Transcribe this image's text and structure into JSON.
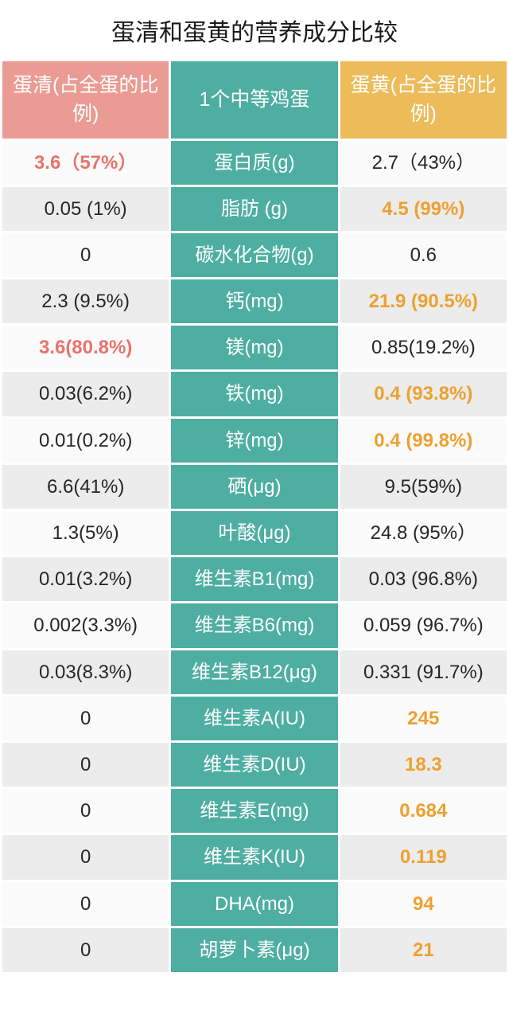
{
  "title": "蛋清和蛋黄的营养成分比较",
  "headers": {
    "white": "蛋清(占全蛋的比例)",
    "mid": "1个中等鸡蛋",
    "yolk": "蛋黄(占全蛋的比例)"
  },
  "colors": {
    "header_white": "#ea9b93",
    "header_mid": "#4eaea2",
    "header_yolk": "#ecbb5a",
    "highlight_white": "#e8746b",
    "highlight_yolk": "#eea02f",
    "row_odd": "#fbfbfb",
    "row_even": "#ececec",
    "text": "#262626"
  },
  "rows": [
    {
      "white": "3.6（57%）",
      "mid": "蛋白质(g)",
      "yolk": "2.7（43%）",
      "hl": "white"
    },
    {
      "white": "0.05 (1%)",
      "mid": "脂肪 (g)",
      "yolk": "4.5 (99%)",
      "hl": "yolk"
    },
    {
      "white": "0",
      "mid": "碳水化合物(g)",
      "yolk": "0.6",
      "hl": "none"
    },
    {
      "white": "2.3 (9.5%)",
      "mid": "钙(mg)",
      "yolk": "21.9 (90.5%)",
      "hl": "yolk"
    },
    {
      "white": "3.6(80.8%)",
      "mid": "镁(mg)",
      "yolk": "0.85(19.2%)",
      "hl": "white"
    },
    {
      "white": "0.03(6.2%)",
      "mid": "铁(mg)",
      "yolk": "0.4 (93.8%)",
      "hl": "yolk"
    },
    {
      "white": "0.01(0.2%)",
      "mid": "锌(mg)",
      "yolk": "0.4 (99.8%)",
      "hl": "yolk"
    },
    {
      "white": "6.6(41%)",
      "mid": "硒(μg)",
      "yolk": "9.5(59%)",
      "hl": "none"
    },
    {
      "white": "1.3(5%)",
      "mid": "叶酸(μg)",
      "yolk": "24.8 (95%）",
      "hl": "none"
    },
    {
      "white": "0.01(3.2%)",
      "mid": "维生素B1(mg)",
      "yolk": "0.03 (96.8%)",
      "hl": "none"
    },
    {
      "white": "0.002(3.3%)",
      "mid": "维生素B6(mg)",
      "yolk": "0.059 (96.7%)",
      "hl": "none"
    },
    {
      "white": "0.03(8.3%)",
      "mid": "维生素B12(μg)",
      "yolk": "0.331 (91.7%)",
      "hl": "none"
    },
    {
      "white": "0",
      "mid": "维生素A(IU)",
      "yolk": "245",
      "hl": "yolk"
    },
    {
      "white": "0",
      "mid": "维生素D(IU)",
      "yolk": "18.3",
      "hl": "yolk"
    },
    {
      "white": "0",
      "mid": "维生素E(mg)",
      "yolk": "0.684",
      "hl": "yolk"
    },
    {
      "white": "0",
      "mid": "维生素K(IU)",
      "yolk": "0.119",
      "hl": "yolk"
    },
    {
      "white": "0",
      "mid": "DHA(mg)",
      "yolk": "94",
      "hl": "yolk"
    },
    {
      "white": "0",
      "mid": "胡萝卜素(μg)",
      "yolk": "21",
      "hl": "yolk"
    }
  ]
}
